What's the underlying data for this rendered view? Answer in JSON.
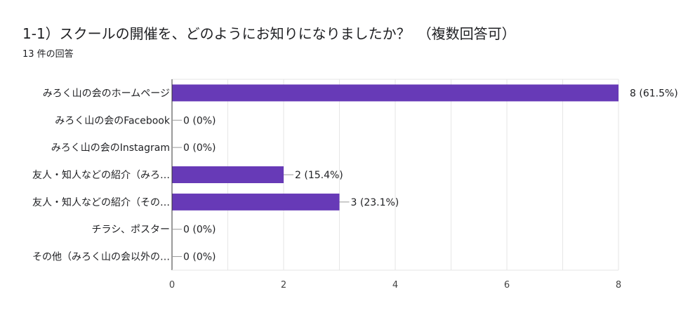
{
  "title": "1-1）スクールの開催を、どのようにお知りになりましたか？　（複数回答可）",
  "subtitle": "13 件の回答",
  "chart_data": {
    "type": "bar",
    "orientation": "horizontal",
    "categories": [
      "みろく山の会のホームページ",
      "みろく山の会のFacebook",
      "みろく山の会のInstagram",
      "友人・知人などの紹介（みろ…",
      "友人・知人などの紹介（その…",
      "チラシ、ポスター",
      "その他（みろく山の会以外の…"
    ],
    "values": [
      8,
      0,
      0,
      2,
      3,
      0,
      0
    ],
    "value_labels": [
      "8 (61.5%)",
      "0 (0%)",
      "0 (0%)",
      "2 (15.4%)",
      "3 (23.1%)",
      "0 (0%)",
      "0 (0%)"
    ],
    "xlim": [
      0,
      8
    ],
    "xticks": [
      0,
      2,
      4,
      6,
      8
    ],
    "grid": true,
    "bar_color": "#673ab7",
    "grid_color": "#e6e6e6",
    "axis_color": "#333333"
  }
}
